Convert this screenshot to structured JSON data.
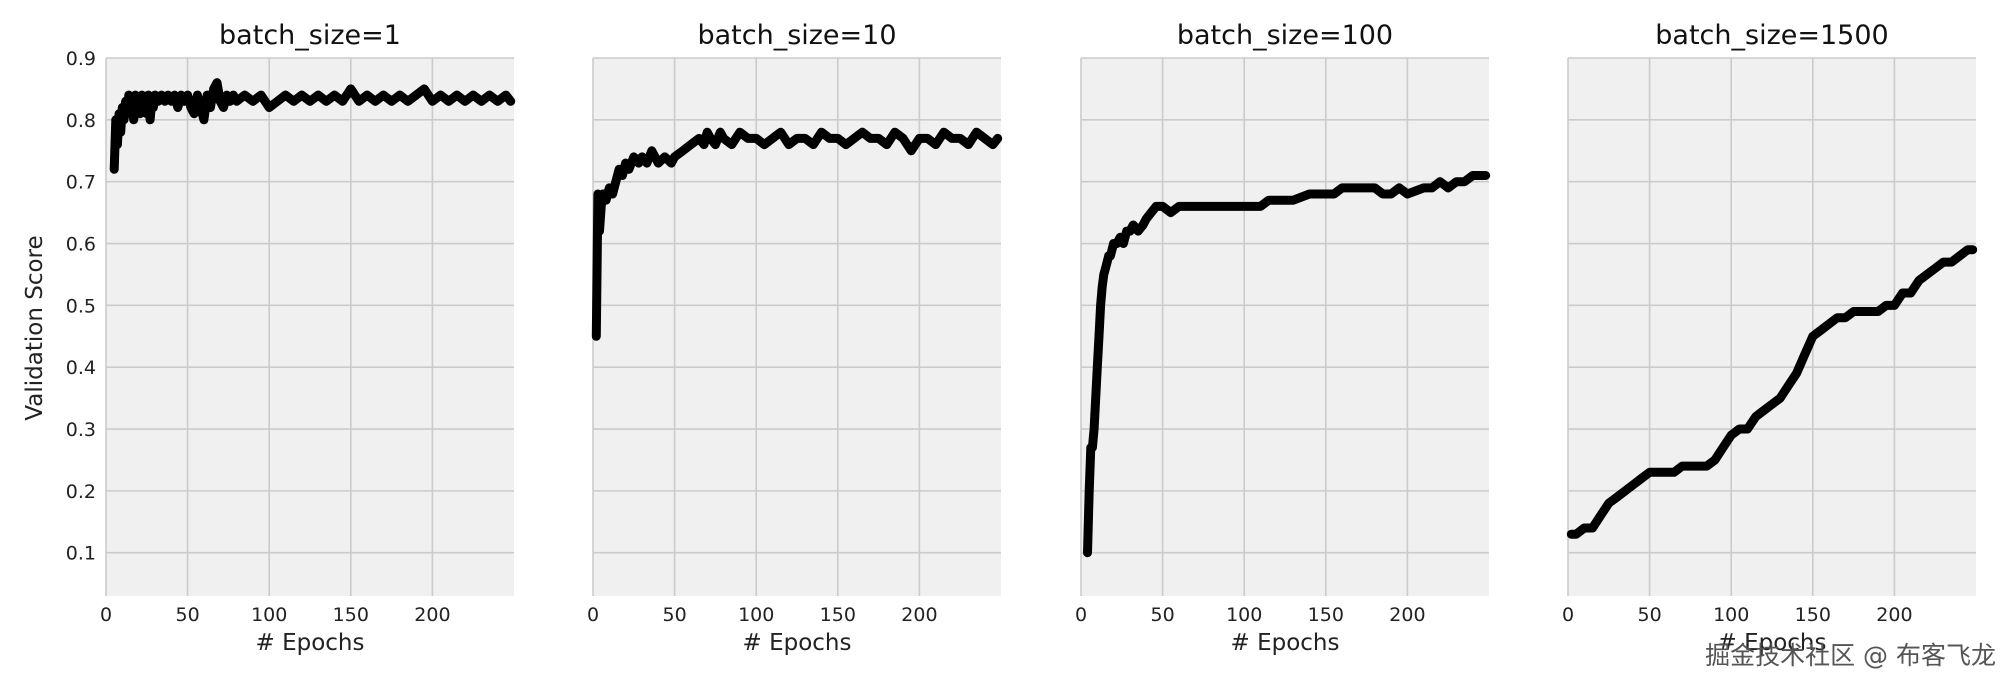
{
  "colors": {
    "panel_background": "#f0f0f0",
    "grid": "#cbcbcb",
    "line": "#000000"
  },
  "ylabel": "Validation Score",
  "watermark": "掘金技术社区 @ 布客飞龙",
  "chart_data": [
    {
      "type": "line",
      "title": "batch_size=1",
      "xlabel": "# Epochs",
      "ylabel": "Validation Score",
      "xlim": [
        0,
        250
      ],
      "ylim": [
        0.03,
        0.9
      ],
      "xticks": [
        0,
        50,
        100,
        150,
        200
      ],
      "yticks": [
        0.1,
        0.2,
        0.3,
        0.4,
        0.5,
        0.6,
        0.7,
        0.8,
        0.9
      ],
      "show_yticklabels": true,
      "grid": true,
      "series": [
        {
          "x": [
            5,
            6,
            7,
            8,
            9,
            10,
            11,
            12,
            13,
            14,
            15,
            16,
            17,
            18,
            19,
            20,
            21,
            22,
            23,
            24,
            25,
            26,
            27,
            28,
            29,
            30,
            32,
            34,
            36,
            38,
            40,
            42,
            44,
            46,
            48,
            50,
            52,
            54,
            56,
            58,
            60,
            62,
            64,
            66,
            68,
            70,
            72,
            74,
            76,
            78,
            80,
            85,
            90,
            95,
            100,
            105,
            110,
            115,
            120,
            125,
            130,
            135,
            140,
            145,
            150,
            155,
            160,
            165,
            170,
            175,
            180,
            185,
            190,
            195,
            200,
            205,
            210,
            215,
            220,
            225,
            230,
            235,
            240,
            245,
            248
          ],
          "values": [
            0.72,
            0.8,
            0.76,
            0.81,
            0.78,
            0.82,
            0.8,
            0.83,
            0.81,
            0.84,
            0.82,
            0.83,
            0.8,
            0.84,
            0.82,
            0.83,
            0.81,
            0.84,
            0.82,
            0.83,
            0.81,
            0.84,
            0.8,
            0.83,
            0.82,
            0.84,
            0.83,
            0.84,
            0.83,
            0.84,
            0.83,
            0.84,
            0.82,
            0.84,
            0.83,
            0.84,
            0.82,
            0.81,
            0.84,
            0.82,
            0.8,
            0.84,
            0.82,
            0.85,
            0.86,
            0.83,
            0.82,
            0.84,
            0.83,
            0.84,
            0.83,
            0.84,
            0.83,
            0.84,
            0.82,
            0.83,
            0.84,
            0.83,
            0.84,
            0.83,
            0.84,
            0.83,
            0.84,
            0.83,
            0.85,
            0.83,
            0.84,
            0.83,
            0.84,
            0.83,
            0.84,
            0.83,
            0.84,
            0.85,
            0.83,
            0.84,
            0.83,
            0.84,
            0.83,
            0.84,
            0.83,
            0.84,
            0.83,
            0.84,
            0.83
          ]
        }
      ]
    },
    {
      "type": "line",
      "title": "batch_size=10",
      "xlabel": "# Epochs",
      "xlim": [
        0,
        250
      ],
      "ylim": [
        0.03,
        0.9
      ],
      "xticks": [
        0,
        50,
        100,
        150,
        200
      ],
      "yticks": [
        0.1,
        0.2,
        0.3,
        0.4,
        0.5,
        0.6,
        0.7,
        0.8,
        0.9
      ],
      "show_yticklabels": false,
      "grid": true,
      "series": [
        {
          "x": [
            2,
            3,
            4,
            5,
            6,
            8,
            10,
            12,
            14,
            16,
            18,
            20,
            22,
            25,
            28,
            30,
            33,
            36,
            40,
            44,
            48,
            50,
            55,
            60,
            65,
            68,
            70,
            72,
            75,
            78,
            80,
            85,
            90,
            95,
            100,
            105,
            110,
            115,
            120,
            125,
            130,
            135,
            140,
            145,
            150,
            155,
            160,
            165,
            170,
            175,
            180,
            185,
            190,
            195,
            200,
            205,
            210,
            215,
            220,
            225,
            230,
            235,
            240,
            245,
            248
          ],
          "values": [
            0.45,
            0.68,
            0.62,
            0.66,
            0.68,
            0.67,
            0.69,
            0.68,
            0.7,
            0.72,
            0.71,
            0.73,
            0.72,
            0.74,
            0.73,
            0.74,
            0.73,
            0.75,
            0.73,
            0.74,
            0.73,
            0.74,
            0.75,
            0.76,
            0.77,
            0.76,
            0.78,
            0.77,
            0.76,
            0.78,
            0.77,
            0.76,
            0.78,
            0.77,
            0.77,
            0.76,
            0.77,
            0.78,
            0.76,
            0.77,
            0.77,
            0.76,
            0.78,
            0.77,
            0.77,
            0.76,
            0.77,
            0.78,
            0.77,
            0.77,
            0.76,
            0.78,
            0.77,
            0.75,
            0.77,
            0.77,
            0.76,
            0.78,
            0.77,
            0.77,
            0.76,
            0.78,
            0.77,
            0.76,
            0.77
          ]
        }
      ]
    },
    {
      "type": "line",
      "title": "batch_size=100",
      "xlabel": "# Epochs",
      "xlim": [
        0,
        250
      ],
      "ylim": [
        0.03,
        0.9
      ],
      "xticks": [
        0,
        50,
        100,
        150,
        200
      ],
      "yticks": [
        0.1,
        0.2,
        0.3,
        0.4,
        0.5,
        0.6,
        0.7,
        0.8,
        0.9
      ],
      "show_yticklabels": false,
      "grid": true,
      "series": [
        {
          "x": [
            4,
            5,
            6,
            7,
            8,
            9,
            10,
            11,
            12,
            13,
            14,
            15,
            16,
            17,
            18,
            19,
            20,
            22,
            24,
            26,
            28,
            30,
            32,
            35,
            38,
            40,
            43,
            46,
            50,
            55,
            60,
            70,
            80,
            90,
            100,
            110,
            115,
            120,
            130,
            140,
            150,
            155,
            160,
            170,
            180,
            185,
            190,
            195,
            200,
            210,
            215,
            220,
            225,
            230,
            235,
            240,
            245,
            248
          ],
          "values": [
            0.1,
            0.2,
            0.27,
            0.27,
            0.3,
            0.35,
            0.4,
            0.45,
            0.5,
            0.53,
            0.55,
            0.56,
            0.57,
            0.58,
            0.58,
            0.59,
            0.6,
            0.6,
            0.61,
            0.6,
            0.62,
            0.62,
            0.63,
            0.62,
            0.63,
            0.64,
            0.65,
            0.66,
            0.66,
            0.65,
            0.66,
            0.66,
            0.66,
            0.66,
            0.66,
            0.66,
            0.67,
            0.67,
            0.67,
            0.68,
            0.68,
            0.68,
            0.69,
            0.69,
            0.69,
            0.68,
            0.68,
            0.69,
            0.68,
            0.69,
            0.69,
            0.7,
            0.69,
            0.7,
            0.7,
            0.71,
            0.71,
            0.71
          ]
        }
      ]
    },
    {
      "type": "line",
      "title": "batch_size=1500",
      "xlabel": "# Epochs",
      "xlim": [
        0,
        250
      ],
      "ylim": [
        0.03,
        0.9
      ],
      "xticks": [
        0,
        50,
        100,
        150,
        200
      ],
      "yticks": [
        0.1,
        0.2,
        0.3,
        0.4,
        0.5,
        0.6,
        0.7,
        0.8,
        0.9
      ],
      "show_yticklabels": false,
      "grid": true,
      "series": [
        {
          "x": [
            2,
            5,
            10,
            15,
            20,
            25,
            30,
            35,
            40,
            45,
            50,
            55,
            60,
            65,
            70,
            75,
            80,
            85,
            90,
            95,
            100,
            105,
            110,
            115,
            120,
            125,
            130,
            135,
            140,
            145,
            150,
            155,
            160,
            165,
            170,
            175,
            180,
            185,
            190,
            195,
            200,
            205,
            210,
            215,
            220,
            225,
            230,
            235,
            240,
            245,
            248
          ],
          "values": [
            0.13,
            0.13,
            0.14,
            0.14,
            0.16,
            0.18,
            0.19,
            0.2,
            0.21,
            0.22,
            0.23,
            0.23,
            0.23,
            0.23,
            0.24,
            0.24,
            0.24,
            0.24,
            0.25,
            0.27,
            0.29,
            0.3,
            0.3,
            0.32,
            0.33,
            0.34,
            0.35,
            0.37,
            0.39,
            0.42,
            0.45,
            0.46,
            0.47,
            0.48,
            0.48,
            0.49,
            0.49,
            0.49,
            0.49,
            0.5,
            0.5,
            0.52,
            0.52,
            0.54,
            0.55,
            0.56,
            0.57,
            0.57,
            0.58,
            0.59,
            0.59
          ]
        }
      ]
    }
  ]
}
